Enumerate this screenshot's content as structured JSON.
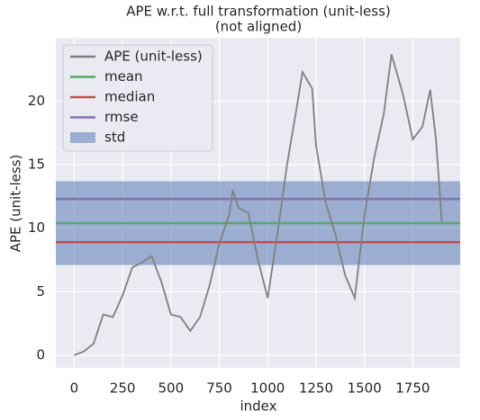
{
  "chart_data": {
    "type": "line",
    "title": "APE w.r.t. full transformation (unit-less)",
    "subtitle": "(not aligned)",
    "x_label": "index",
    "y_label": "APE (unit-less)",
    "x": [
      0,
      50,
      100,
      150,
      200,
      250,
      300,
      350,
      400,
      450,
      500,
      550,
      600,
      650,
      700,
      750,
      800,
      820,
      850,
      900,
      950,
      1000,
      1050,
      1100,
      1150,
      1180,
      1230,
      1250,
      1300,
      1350,
      1400,
      1450,
      1500,
      1550,
      1600,
      1640,
      1700,
      1750,
      1800,
      1840,
      1870,
      1900
    ],
    "series": [
      {
        "name": "APE (unit-less)",
        "color": "#808080",
        "values": [
          0.0,
          0.3,
          0.9,
          3.2,
          3.0,
          4.7,
          6.9,
          7.3,
          7.8,
          5.8,
          3.2,
          3.0,
          1.9,
          3.0,
          5.5,
          8.8,
          11.0,
          13.0,
          11.6,
          11.2,
          7.5,
          4.5,
          9.5,
          15.0,
          19.5,
          22.3,
          21.0,
          16.5,
          12.0,
          9.5,
          6.3,
          4.5,
          11.0,
          15.5,
          19.0,
          23.7,
          20.5,
          17.0,
          18.0,
          20.9,
          17.0,
          10.5
        ]
      }
    ],
    "stats": [
      {
        "name": "mean",
        "color": "#55a868",
        "value": 10.4
      },
      {
        "name": "median",
        "color": "#c44e52",
        "value": 8.9
      },
      {
        "name": "rmse",
        "color": "#8172b2",
        "value": 12.3
      }
    ],
    "std": {
      "name": "std",
      "color": "#4c72b0",
      "value": 3.3
    },
    "xlim": [
      -95,
      1995
    ],
    "ylim": [
      -1.0,
      25.0
    ],
    "xticks": [
      0,
      250,
      500,
      750,
      1000,
      1250,
      1500,
      1750
    ],
    "yticks": [
      0,
      5,
      10,
      15,
      20
    ],
    "grid": true,
    "legend": "upper left"
  }
}
